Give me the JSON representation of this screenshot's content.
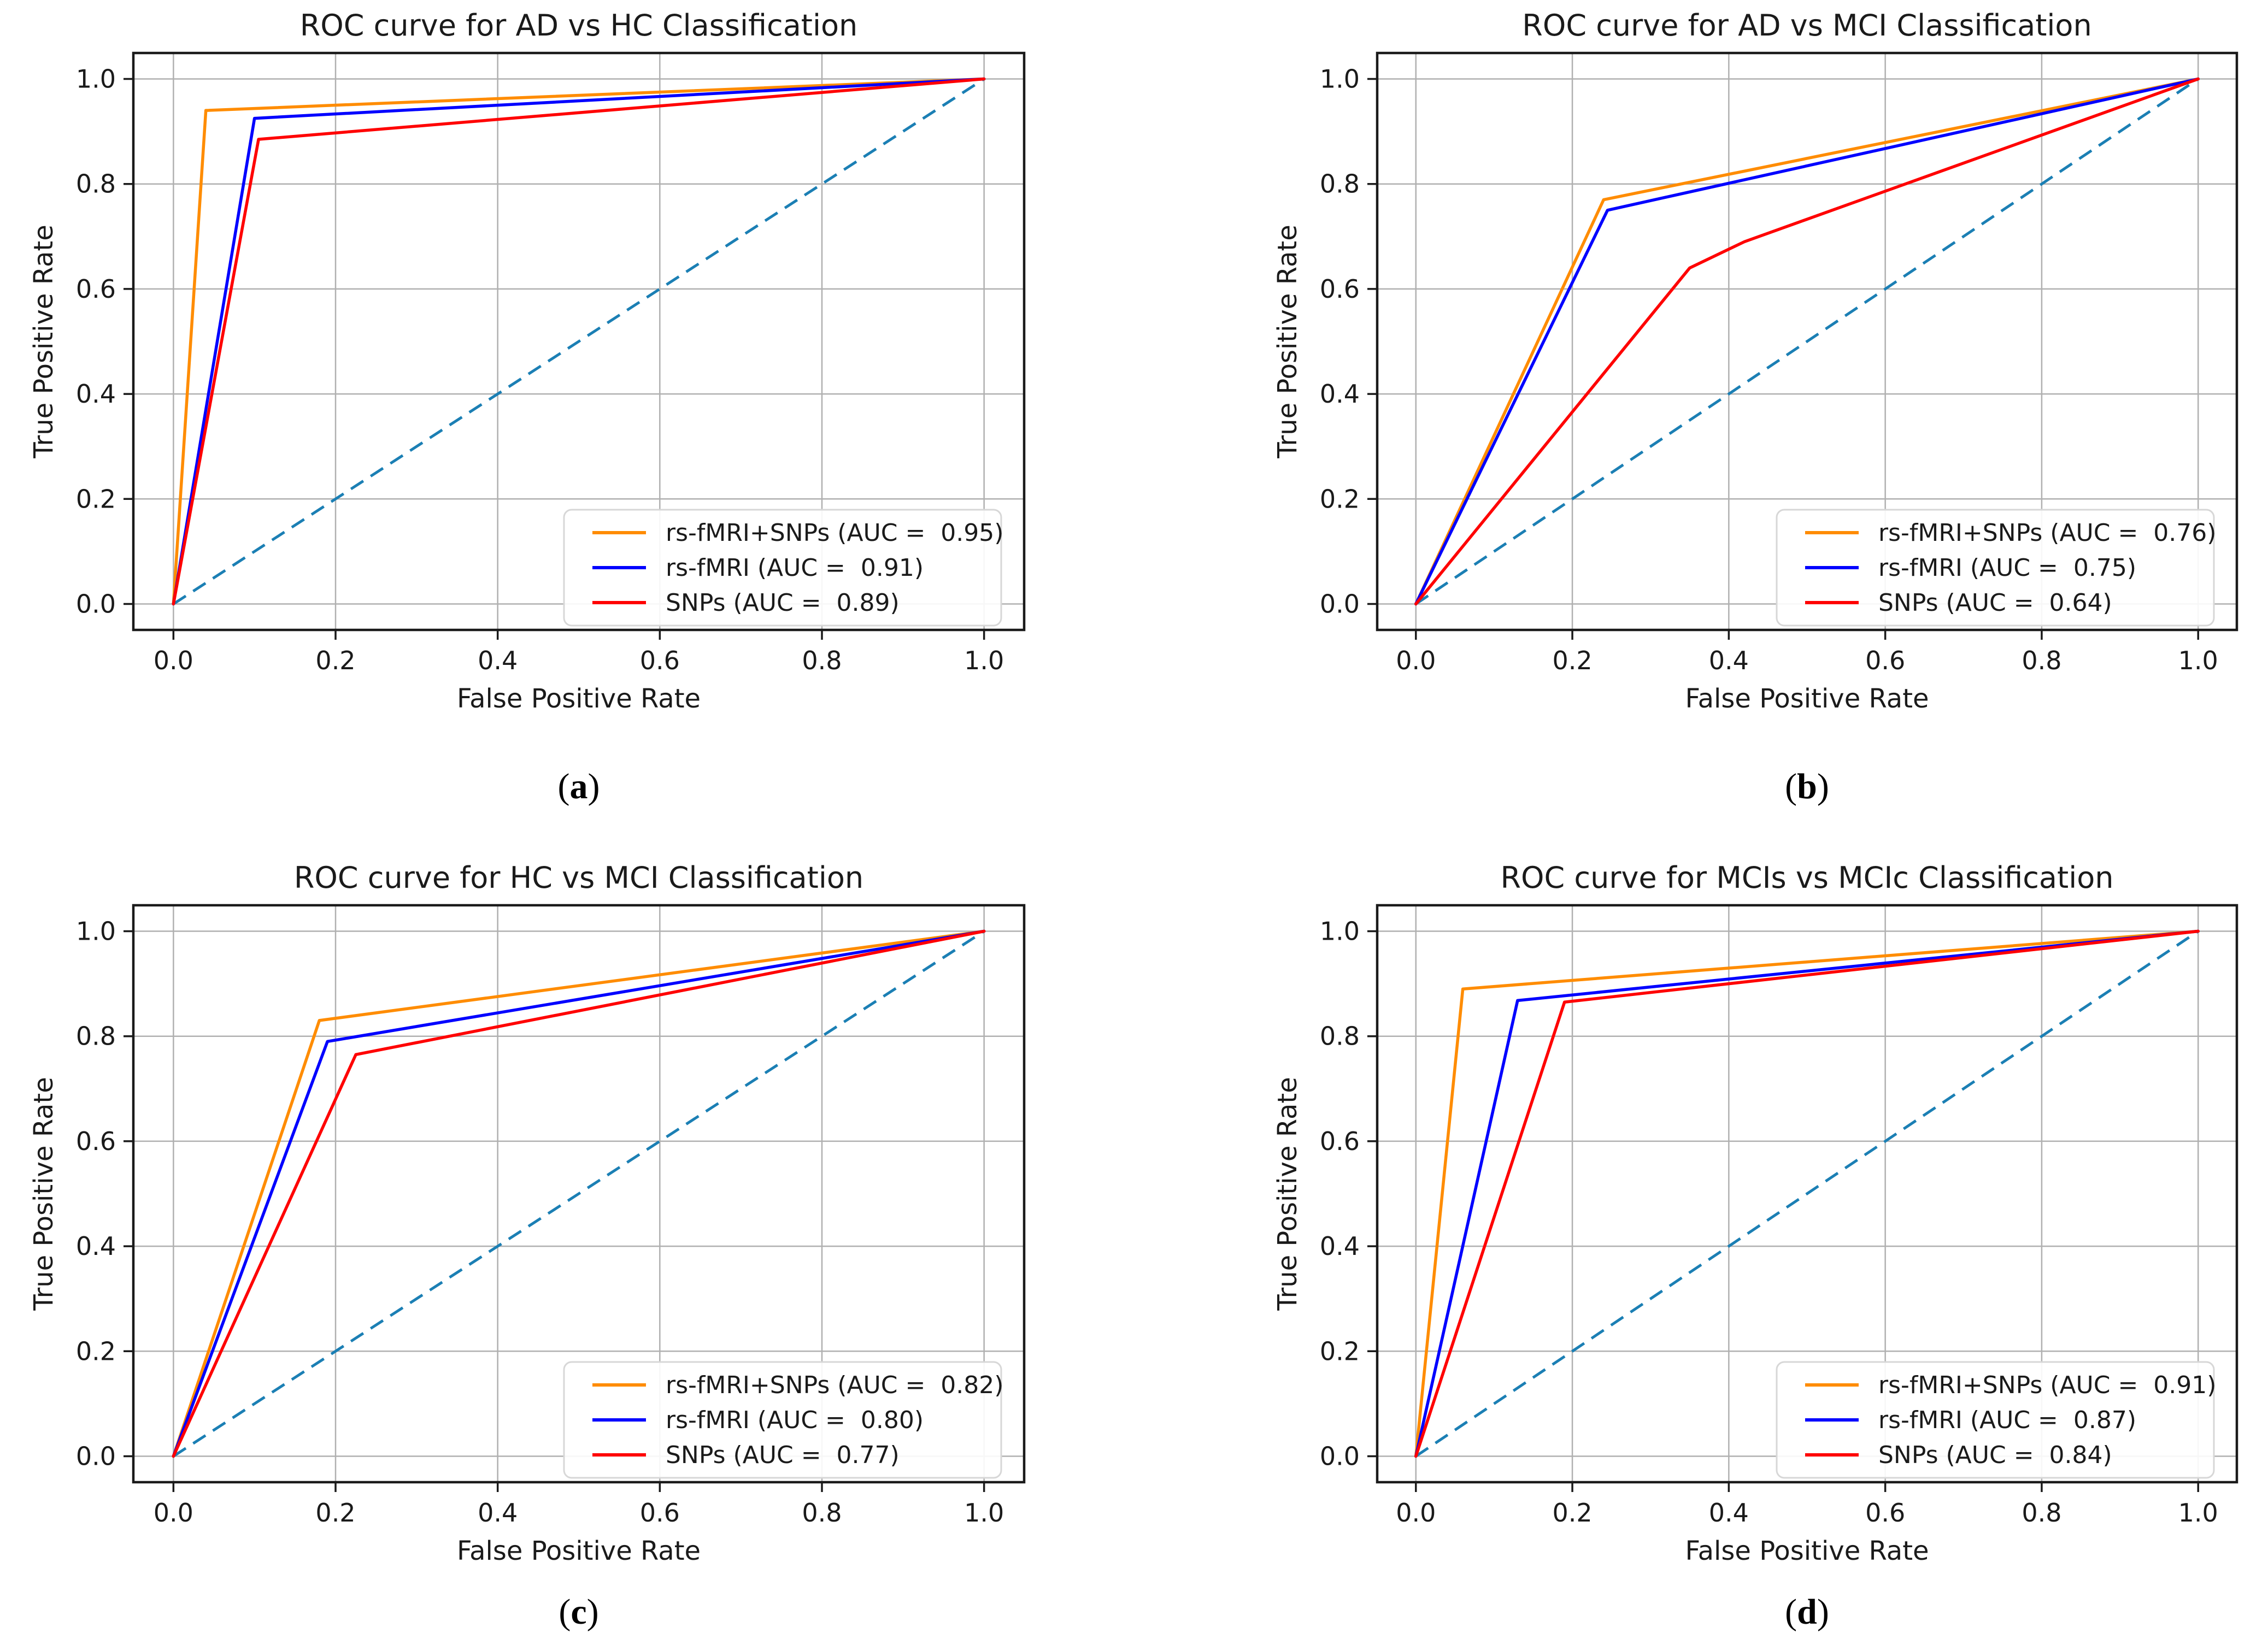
{
  "figure_background": "#ffffff",
  "shared_style": {
    "grid_color": "#b0b0b0",
    "spine_color": "#1a1a1a",
    "tick_color": "#1a1a1a",
    "text_color": "#1a1a1a",
    "legend_border_color": "#d7d7d7",
    "legend_background": "#ffffff",
    "diagonal_color": "#1b7fb4",
    "series_colors": {
      "combined": "#ff8c00",
      "fmri": "#0000ff",
      "snps": "#ff0000"
    }
  },
  "chart_data": [
    {
      "id": "a",
      "type": "line",
      "caption": "a",
      "title": "ROC curve for AD vs HC Classification",
      "xlabel": "False Positive Rate",
      "ylabel": "True Positive Rate",
      "xlim": [
        -0.05,
        1.05
      ],
      "ylim": [
        -0.05,
        1.05
      ],
      "grid": true,
      "legend_position": "lower right",
      "xticks": {
        "values": [
          0.0,
          0.2,
          0.4,
          0.6,
          0.8,
          1.0
        ],
        "labels": [
          "0.0",
          "0.2",
          "0.4",
          "0.6",
          "0.8",
          "1.0"
        ]
      },
      "yticks": {
        "values": [
          0.0,
          0.2,
          0.4,
          0.6,
          0.8,
          1.0
        ],
        "labels": [
          "0.0",
          "0.2",
          "0.4",
          "0.6",
          "0.8",
          "1.0"
        ]
      },
      "diagonal": {
        "name": "chance-line",
        "color": "#1b7fb4",
        "dashed": true,
        "points": [
          [
            0,
            0
          ],
          [
            1,
            1
          ]
        ]
      },
      "series": [
        {
          "name": "rs-fMRI+SNPs",
          "label": "rs-fMRI+SNPs (AUC =  0.95)",
          "auc": "0.95",
          "color": "#ff8c00",
          "points": [
            [
              0,
              0
            ],
            [
              0.04,
              0.94
            ],
            [
              1,
              1
            ]
          ]
        },
        {
          "name": "rs-fMRI",
          "label": "rs-fMRI (AUC =  0.91)",
          "auc": "0.91",
          "color": "#0000ff",
          "points": [
            [
              0,
              0
            ],
            [
              0.1,
              0.925
            ],
            [
              1,
              1
            ]
          ]
        },
        {
          "name": "SNPs",
          "label": "SNPs (AUC =  0.89)",
          "auc": "0.89",
          "color": "#ff0000",
          "points": [
            [
              0,
              0
            ],
            [
              0.105,
              0.885
            ],
            [
              1,
              1
            ]
          ]
        }
      ]
    },
    {
      "id": "b",
      "type": "line",
      "caption": "b",
      "title": "ROC curve for AD vs MCI Classification",
      "xlabel": "False Positive Rate",
      "ylabel": "True Positive Rate",
      "xlim": [
        -0.05,
        1.05
      ],
      "ylim": [
        -0.05,
        1.05
      ],
      "grid": true,
      "legend_position": "lower right",
      "xticks": {
        "values": [
          0.0,
          0.2,
          0.4,
          0.6,
          0.8,
          1.0
        ],
        "labels": [
          "0.0",
          "0.2",
          "0.4",
          "0.6",
          "0.8",
          "1.0"
        ]
      },
      "yticks": {
        "values": [
          0.0,
          0.2,
          0.4,
          0.6,
          0.8,
          1.0
        ],
        "labels": [
          "0.0",
          "0.2",
          "0.4",
          "0.6",
          "0.8",
          "1.0"
        ]
      },
      "diagonal": {
        "name": "chance-line",
        "color": "#1b7fb4",
        "dashed": true,
        "points": [
          [
            0,
            0
          ],
          [
            1,
            1
          ]
        ]
      },
      "series": [
        {
          "name": "rs-fMRI+SNPs",
          "label": "rs-fMRI+SNPs (AUC =  0.76)",
          "auc": "0.76",
          "color": "#ff8c00",
          "points": [
            [
              0,
              0
            ],
            [
              0.24,
              0.77
            ],
            [
              1,
              1
            ]
          ]
        },
        {
          "name": "rs-fMRI",
          "label": "rs-fMRI (AUC =  0.75)",
          "auc": "0.75",
          "color": "#0000ff",
          "points": [
            [
              0,
              0
            ],
            [
              0.245,
              0.75
            ],
            [
              1,
              1
            ]
          ]
        },
        {
          "name": "SNPs",
          "label": "SNPs (AUC =  0.64)",
          "auc": "0.64",
          "color": "#ff0000",
          "points": [
            [
              0,
              0
            ],
            [
              0.35,
              0.64
            ],
            [
              0.42,
              0.69
            ],
            [
              1,
              1
            ]
          ]
        }
      ]
    },
    {
      "id": "c",
      "type": "line",
      "caption": "c",
      "title": "ROC curve for HC vs MCI Classification",
      "xlabel": "False Positive Rate",
      "ylabel": "True Positive Rate",
      "xlim": [
        -0.05,
        1.05
      ],
      "ylim": [
        -0.05,
        1.05
      ],
      "grid": true,
      "legend_position": "lower right",
      "xticks": {
        "values": [
          0.0,
          0.2,
          0.4,
          0.6,
          0.8,
          1.0
        ],
        "labels": [
          "0.0",
          "0.2",
          "0.4",
          "0.6",
          "0.8",
          "1.0"
        ]
      },
      "yticks": {
        "values": [
          0.0,
          0.2,
          0.4,
          0.6,
          0.8,
          1.0
        ],
        "labels": [
          "0.0",
          "0.2",
          "0.4",
          "0.6",
          "0.8",
          "1.0"
        ]
      },
      "diagonal": {
        "name": "chance-line",
        "color": "#1b7fb4",
        "dashed": true,
        "points": [
          [
            0,
            0
          ],
          [
            1,
            1
          ]
        ]
      },
      "series": [
        {
          "name": "rs-fMRI+SNPs",
          "label": "rs-fMRI+SNPs (AUC =  0.82)",
          "auc": "0.82",
          "color": "#ff8c00",
          "points": [
            [
              0,
              0
            ],
            [
              0.18,
              0.83
            ],
            [
              1,
              1
            ]
          ]
        },
        {
          "name": "rs-fMRI",
          "label": "rs-fMRI (AUC =  0.80)",
          "auc": "0.80",
          "color": "#0000ff",
          "points": [
            [
              0,
              0
            ],
            [
              0.19,
              0.79
            ],
            [
              1,
              1
            ]
          ]
        },
        {
          "name": "SNPs",
          "label": "SNPs (AUC =  0.77)",
          "auc": "0.77",
          "color": "#ff0000",
          "points": [
            [
              0,
              0
            ],
            [
              0.225,
              0.765
            ],
            [
              1,
              1
            ]
          ]
        }
      ]
    },
    {
      "id": "d",
      "type": "line",
      "caption": "d",
      "title": "ROC curve for MCIs vs MCIc Classification",
      "xlabel": "False Positive Rate",
      "ylabel": "True Positive Rate",
      "xlim": [
        -0.05,
        1.05
      ],
      "ylim": [
        -0.05,
        1.05
      ],
      "grid": true,
      "legend_position": "lower right",
      "xticks": {
        "values": [
          0.0,
          0.2,
          0.4,
          0.6,
          0.8,
          1.0
        ],
        "labels": [
          "0.0",
          "0.2",
          "0.4",
          "0.6",
          "0.8",
          "1.0"
        ]
      },
      "yticks": {
        "values": [
          0.0,
          0.2,
          0.4,
          0.6,
          0.8,
          1.0
        ],
        "labels": [
          "0.0",
          "0.2",
          "0.4",
          "0.6",
          "0.8",
          "1.0"
        ]
      },
      "diagonal": {
        "name": "chance-line",
        "color": "#1b7fb4",
        "dashed": true,
        "points": [
          [
            0,
            0
          ],
          [
            1,
            1
          ]
        ]
      },
      "series": [
        {
          "name": "rs-fMRI+SNPs",
          "label": "rs-fMRI+SNPs (AUC =  0.91)",
          "auc": "0.91",
          "color": "#ff8c00",
          "points": [
            [
              0,
              0
            ],
            [
              0.06,
              0.89
            ],
            [
              1,
              1
            ]
          ]
        },
        {
          "name": "rs-fMRI",
          "label": "rs-fMRI (AUC =  0.87)",
          "auc": "0.87",
          "color": "#0000ff",
          "points": [
            [
              0,
              0
            ],
            [
              0.13,
              0.868
            ],
            [
              1,
              1
            ]
          ]
        },
        {
          "name": "SNPs",
          "label": "SNPs (AUC =  0.84)",
          "auc": "0.84",
          "color": "#ff0000",
          "points": [
            [
              0,
              0
            ],
            [
              0.19,
              0.865
            ],
            [
              1,
              1
            ]
          ]
        }
      ]
    }
  ]
}
